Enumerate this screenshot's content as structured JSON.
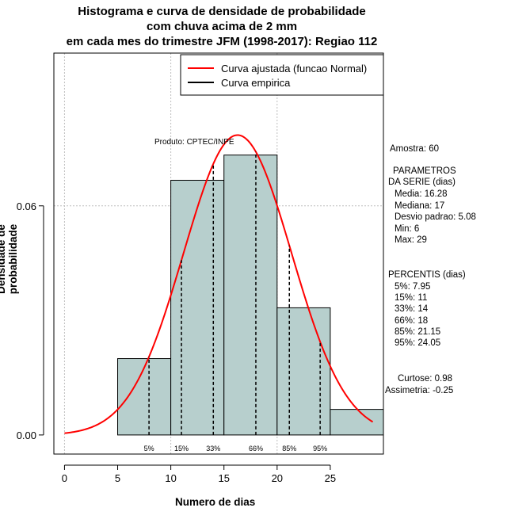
{
  "title": {
    "line1": "Histograma e curva de densidade de probabilidade",
    "line2": "com chuva acima de 2 mm",
    "line3": "em cada mes do trimestre JFM (1998-2017): Regiao 112"
  },
  "product_label": "Produto: CPTEC/INPE",
  "legend": {
    "fitted": "Curva ajustada (funcao Normal)",
    "empirical": "Curva empirica"
  },
  "colors": {
    "fill": "#b7cfcd",
    "curve": "#ff0000",
    "grid": "#bebebe"
  },
  "stats": {
    "amostra": "Amostra: 60",
    "params_title1": "PARAMETROS",
    "params_title2": "DA SERIE (dias)",
    "media": "Media: 16.28",
    "mediana": "Mediana: 17",
    "desvio": "Desvio padrao: 5.08",
    "min": "Min: 6",
    "max": "Max: 29",
    "percentis_title": "PERCENTIS (dias)",
    "p5": "5%: 7.95",
    "p15": "15%: 11",
    "p33": "33%: 14",
    "p66": "66%: 18",
    "p85": "85%: 21.15",
    "p95": "95%: 24.05",
    "curtose": "Curtose: 0.98",
    "assimetria": "Assimetria: -0.25"
  },
  "chart_data": {
    "type": "bar",
    "title": "Histograma e curva de densidade de probabilidade com chuva acima de 2 mm em cada mes do trimestre JFM (1998-2017): Regiao 112",
    "xlabel": "Numero de dias",
    "ylabel": "Densidade de probabilidade",
    "xlim": [
      -1,
      30
    ],
    "ylim": [
      -0.005,
      0.1
    ],
    "x_ticks": [
      0,
      5,
      10,
      15,
      20,
      25
    ],
    "x_tick_labels": [
      "0",
      "5",
      "10",
      "15",
      "20",
      "25"
    ],
    "y_ticks": [
      0,
      0.06
    ],
    "y_tick_labels": [
      "0.00",
      "0.06"
    ],
    "grid_x": [
      0,
      10,
      20
    ],
    "grid_y": [
      0.06,
      0.1
    ],
    "bins": [
      {
        "from": 5,
        "to": 10,
        "density": 0.02
      },
      {
        "from": 10,
        "to": 15,
        "density": 0.0667
      },
      {
        "from": 15,
        "to": 20,
        "density": 0.0733
      },
      {
        "from": 20,
        "to": 25,
        "density": 0.0333
      },
      {
        "from": 25,
        "to": 30,
        "density": 0.0067
      }
    ],
    "normal_fit": {
      "mean": 16.28,
      "sd": 5.08,
      "x_from": 0,
      "x_to": 29
    },
    "percentiles": [
      {
        "label": "5%",
        "value": 7.95
      },
      {
        "label": "15%",
        "value": 11
      },
      {
        "label": "33%",
        "value": 14
      },
      {
        "label": "66%",
        "value": 18
      },
      {
        "label": "85%",
        "value": 21.15
      },
      {
        "label": "95%",
        "value": 24.05
      }
    ]
  }
}
